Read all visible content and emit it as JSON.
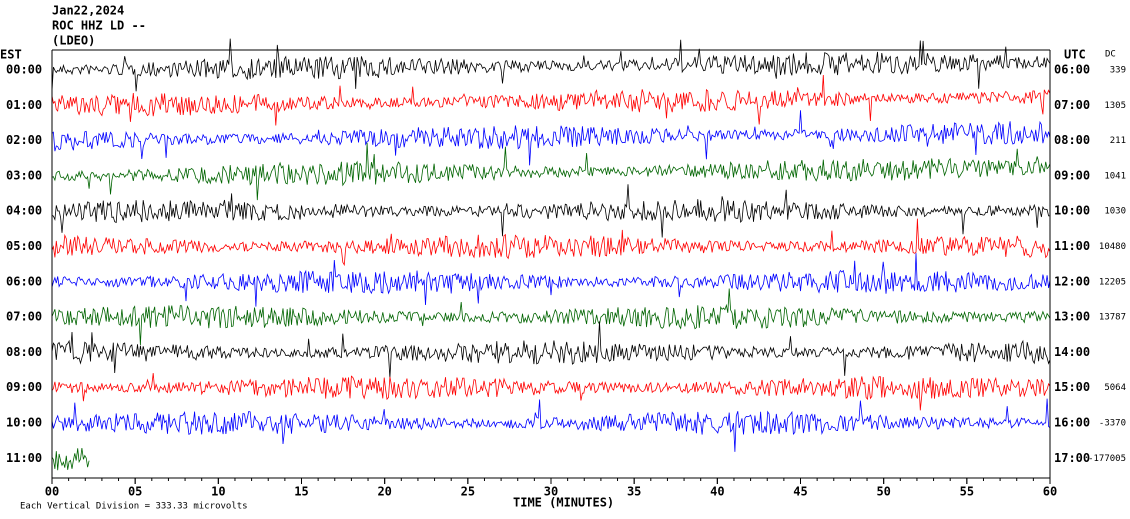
{
  "header": {
    "date": "Jan22,2024",
    "station": "ROC HHZ LD --",
    "network": "(LDEO)"
  },
  "left_axis_label": "EST",
  "right_axis_label": "UTC",
  "dc_label": "DC",
  "rows": [
    {
      "est": "00:00",
      "utc": "06:00",
      "dc": "339",
      "color": "#000000"
    },
    {
      "est": "01:00",
      "utc": "07:00",
      "dc": "1305",
      "color": "#ff0000"
    },
    {
      "est": "02:00",
      "utc": "08:00",
      "dc": "211",
      "color": "#0000ff"
    },
    {
      "est": "03:00",
      "utc": "09:00",
      "dc": "1041",
      "color": "#006400"
    },
    {
      "est": "04:00",
      "utc": "10:00",
      "dc": "1030",
      "color": "#000000"
    },
    {
      "est": "05:00",
      "utc": "11:00",
      "dc": "10480",
      "color": "#ff0000"
    },
    {
      "est": "06:00",
      "utc": "12:00",
      "dc": "12205",
      "color": "#0000ff"
    },
    {
      "est": "07:00",
      "utc": "13:00",
      "dc": "13787",
      "color": "#006400"
    },
    {
      "est": "08:00",
      "utc": "14:00",
      "color": "#000000"
    },
    {
      "est": "09:00",
      "utc": "15:00",
      "dc": "5064",
      "color": "#ff0000"
    },
    {
      "est": "10:00",
      "utc": "16:00",
      "dc": "-3370",
      "color": "#0000ff"
    },
    {
      "est": "11:00",
      "utc": "17:00",
      "dc": "-177005",
      "color": "#006400"
    }
  ],
  "x_axis": {
    "title": "TIME (MINUTES)",
    "xlim": [
      0,
      60
    ],
    "xticks": [
      {
        "value": 0,
        "label": "00"
      },
      {
        "value": 5,
        "label": "05"
      },
      10,
      15,
      20,
      25,
      30,
      35,
      40,
      45,
      50,
      55,
      60
    ]
  },
  "footer": "Each Vertical Division =  333.33 microvolts"
}
